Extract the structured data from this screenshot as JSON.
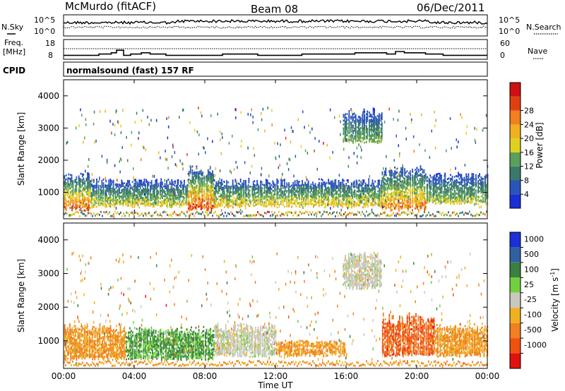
{
  "header": {
    "station": "McMurdo (fitACF)",
    "beam": "Beam 08",
    "date": "06/Dec/2011"
  },
  "top_panel": {
    "left_label": "N.Sky",
    "right_label": "N.Search",
    "left_ticks": [
      "10^5",
      "10^0"
    ],
    "right_ticks": [
      "10^5",
      "10^0"
    ]
  },
  "freq_panel": {
    "left_label_line1": "Freq.",
    "left_label_line2": "[MHz]",
    "right_label": "Nave",
    "left_ticks": [
      "18",
      "8"
    ],
    "right_ticks": [
      "60",
      "0"
    ]
  },
  "cpid": {
    "label": "CPID",
    "program": "normalsound (fast) 157 RF"
  },
  "axes": {
    "ylabel": "Slant Range [km]",
    "y_ticks": [
      "1000",
      "2000",
      "3000",
      "4000"
    ],
    "xlabel": "Time UT",
    "x_ticks": [
      "00:00",
      "04:00",
      "08:00",
      "12:00",
      "16:00",
      "20:00",
      "00:00"
    ]
  },
  "colorbars": {
    "power": {
      "label": "Power [dB]",
      "ticks": [
        "4",
        "8",
        "12",
        "16",
        "20",
        "24",
        "28"
      ],
      "colors": [
        "#1a2fd6",
        "#2a55b8",
        "#3a7a6a",
        "#5aa05a",
        "#e0d020",
        "#f0b020",
        "#f08020",
        "#e04010",
        "#d01010"
      ]
    },
    "velocity": {
      "label": "Velocity [m s",
      "label_sup": "-1",
      "label_close": "]",
      "ticks": [
        "1000",
        "500",
        "100",
        "25",
        "-25",
        "-100",
        "-500",
        "-1000"
      ],
      "colors": [
        "#1a2fd6",
        "#3060a0",
        "#3a8040",
        "#70d040",
        "#c8c8c0",
        "#f0b020",
        "#f08020",
        "#f05010",
        "#e01010"
      ]
    }
  },
  "chart_data": {
    "type": "heatmap",
    "x_range": [
      "00:00",
      "24:00"
    ],
    "y_range_km": [
      180,
      4500
    ],
    "panels": [
      {
        "name": "power",
        "unit": "dB",
        "color_scale": [
          0,
          30
        ],
        "regions": [
          {
            "t0": 0.0,
            "t1": 1.5,
            "r0": 400,
            "r1": 1600,
            "peak": 28
          },
          {
            "t0": 1.5,
            "t1": 7.0,
            "r0": 500,
            "r1": 1400,
            "peak": 18
          },
          {
            "t0": 7.0,
            "t1": 8.5,
            "r0": 400,
            "r1": 1800,
            "peak": 30
          },
          {
            "t0": 8.5,
            "t1": 18.0,
            "r0": 500,
            "r1": 1400,
            "peak": 20
          },
          {
            "t0": 15.8,
            "t1": 18.0,
            "r0": 2500,
            "r1": 3600,
            "peak": 14
          },
          {
            "t0": 18.0,
            "t1": 20.5,
            "r0": 400,
            "r1": 1800,
            "peak": 26
          },
          {
            "t0": 20.5,
            "t1": 24.0,
            "r0": 600,
            "r1": 1600,
            "peak": 16
          }
        ]
      },
      {
        "name": "velocity",
        "unit": "m s-1",
        "color_scale": [
          -1000,
          1000
        ],
        "regions": [
          {
            "t0": 0.0,
            "t1": 3.5,
            "r0": 400,
            "r1": 1500,
            "vel": -100
          },
          {
            "t0": 3.5,
            "t1": 8.5,
            "r0": 400,
            "r1": 1400,
            "vel": 100
          },
          {
            "t0": 8.5,
            "t1": 12.0,
            "r0": 500,
            "r1": 1500,
            "vel": 0
          },
          {
            "t0": 12.0,
            "t1": 16.0,
            "r0": 500,
            "r1": 1000,
            "vel": -100
          },
          {
            "t0": 15.8,
            "t1": 18.0,
            "r0": 2500,
            "r1": 3600,
            "vel": 0
          },
          {
            "t0": 18.0,
            "t1": 21.0,
            "r0": 500,
            "r1": 1800,
            "vel": -500
          },
          {
            "t0": 21.0,
            "t1": 24.0,
            "r0": 500,
            "r1": 1500,
            "vel": -100
          }
        ]
      }
    ],
    "noise_sky": "log, 10^0 to 10^5",
    "frequency_MHz": "8 to 18",
    "nave": "0 to 60"
  }
}
